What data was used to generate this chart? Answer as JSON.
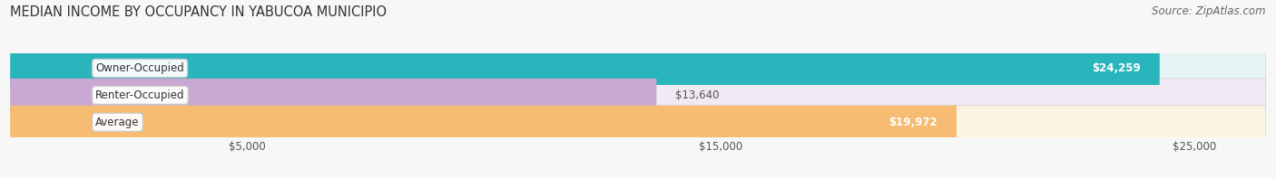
{
  "title": "MEDIAN INCOME BY OCCUPANCY IN YABUCOA MUNICIPIO",
  "source": "Source: ZipAtlas.com",
  "categories": [
    "Owner-Occupied",
    "Renter-Occupied",
    "Average"
  ],
  "values": [
    24259,
    13640,
    19972
  ],
  "bar_colors": [
    "#2ab5bd",
    "#c9a8d4",
    "#f5bc72"
  ],
  "bar_bg_colors": [
    "#e4f3f4",
    "#f0eaf5",
    "#fdf3e3"
  ],
  "value_labels": [
    "$24,259",
    "$13,640",
    "$19,972"
  ],
  "value_label_inside": [
    true,
    false,
    true
  ],
  "xlim": [
    0,
    26500
  ],
  "xticks": [
    5000,
    15000,
    25000
  ],
  "xtick_labels": [
    "$5,000",
    "$15,000",
    "$25,000"
  ],
  "background_color": "#f7f7f7",
  "title_fontsize": 10.5,
  "source_fontsize": 8.5,
  "label_fontsize": 8.5,
  "value_fontsize": 8.5,
  "tick_fontsize": 8.5
}
